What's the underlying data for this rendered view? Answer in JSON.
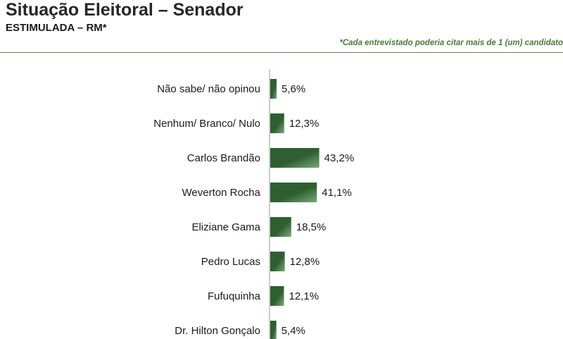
{
  "header": {
    "title": "Situação Eleitoral – Senador",
    "subtitle": "ESTIMULADA – RM*",
    "note": "*Cada entrevistado poderia citar mais de 1 (um) candidato"
  },
  "colors": {
    "bar_dark": "#2f5f31",
    "bar_light": "#7aa878",
    "axis": "#9a9a9a",
    "note": "#4a7a3a",
    "rule": "#5a8a4a"
  },
  "chart_data": {
    "type": "bar",
    "orientation": "horizontal",
    "categories": [
      "Não sabe/ não opinou",
      "Nenhum/ Branco/ Nulo",
      "Carlos Brandão",
      "Weverton Rocha",
      "Eliziane Gama",
      "Pedro Lucas",
      "Fufuquinha",
      "Dr. Hilton Gonçalo"
    ],
    "values": [
      5.6,
      12.3,
      43.2,
      41.1,
      18.5,
      12.8,
      12.1,
      5.4
    ],
    "value_labels": [
      "5,6%",
      "12,3%",
      "43,2%",
      "41,1%",
      "18,5%",
      "12,8%",
      "12,1%",
      "5,4%"
    ],
    "xlim": [
      0,
      100
    ],
    "grid": false,
    "legend": "none"
  }
}
